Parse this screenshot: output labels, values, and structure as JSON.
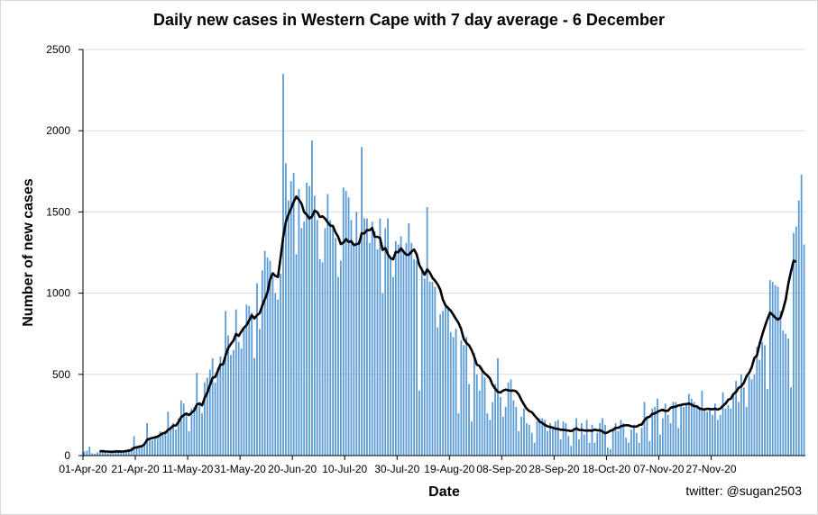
{
  "chart_data": {
    "type": "bar",
    "title": "Daily new cases in Western Cape with 7 day average - 6 December",
    "xlabel": "Date",
    "ylabel": "Number of new cases",
    "credit": "twitter: @sugan2503",
    "ylim": [
      0,
      2500
    ],
    "y_ticks": [
      0,
      500,
      1000,
      1500,
      2000,
      2500
    ],
    "x_tick_labels": [
      "01-Apr-20",
      "21-Apr-20",
      "11-May-20",
      "31-May-20",
      "20-Jun-20",
      "10-Jul-20",
      "30-Jul-20",
      "19-Aug-20",
      "08-Sep-20",
      "28-Sep-20",
      "18-Oct-20",
      "07-Nov-20",
      "27-Nov-20"
    ],
    "x_start": "2020-04-01",
    "x_end": "2020-12-06",
    "grid": "horizontal",
    "colors": {
      "bars": "#5b9bd5",
      "average": "#000000",
      "grid": "#d9d9d9"
    },
    "series": [
      {
        "type": "bar",
        "values": [
          25,
          30,
          55,
          15,
          10,
          20,
          35,
          30,
          20,
          15,
          25,
          30,
          35,
          20,
          25,
          25,
          30,
          40,
          50,
          120,
          60,
          55,
          60,
          80,
          200,
          100,
          95,
          110,
          120,
          150,
          130,
          140,
          270,
          180,
          200,
          160,
          230,
          340,
          320,
          260,
          150,
          290,
          300,
          510,
          320,
          260,
          450,
          480,
          530,
          600,
          450,
          540,
          610,
          560,
          890,
          740,
          620,
          650,
          900,
          700,
          660,
          780,
          930,
          920,
          880,
          600,
          1060,
          780,
          1140,
          1260,
          1220,
          1200,
          1100,
          1000,
          960,
          1120,
          2350,
          1800,
          1570,
          1690,
          1740,
          1240,
          1640,
          1400,
          1440,
          1680,
          1660,
          1940,
          1600,
          1450,
          1210,
          1190,
          1400,
          1610,
          1450,
          1420,
          1340,
          1100,
          1200,
          1650,
          1630,
          1590,
          1450,
          1300,
          1500,
          1320,
          1900,
          1460,
          1460,
          1310,
          1440,
          1380,
          1270,
          1460,
          1000,
          1400,
          1460,
          1210,
          1100,
          1320,
          1300,
          1350,
          1270,
          1310,
          1430,
          1310,
          1210,
          1200,
          400,
          1160,
          1090,
          1530,
          1070,
          1070,
          1040,
          790,
          870,
          890,
          930,
          920,
          760,
          730,
          780,
          260,
          710,
          680,
          730,
          440,
          210,
          630,
          500,
          400,
          540,
          480,
          260,
          220,
          330,
          440,
          600,
          360,
          240,
          300,
          450,
          470,
          340,
          300,
          150,
          240,
          290,
          200,
          190,
          140,
          80,
          210,
          230,
          230,
          220,
          150,
          200,
          180,
          210,
          220,
          100,
          210,
          200,
          120,
          60,
          170,
          230,
          100,
          200,
          130,
          220,
          80,
          190,
          80,
          140,
          200,
          230,
          190,
          50,
          40,
          170,
          200,
          150,
          220,
          200,
          110,
          80,
          160,
          190,
          140,
          80,
          170,
          330,
          230,
          90,
          290,
          300,
          350,
          130,
          230,
          320,
          250,
          200,
          330,
          330,
          170,
          320,
          300,
          310,
          380,
          350,
          330,
          310,
          300,
          400,
          280,
          270,
          290,
          250,
          320,
          220,
          250,
          390,
          290,
          310,
          290,
          370,
          460,
          330,
          500,
          420,
          300,
          490,
          470,
          500,
          670,
          590,
          700,
          680,
          410,
          1080,
          1070,
          1050,
          1040,
          890,
          770,
          750,
          720,
          420,
          1370,
          1410,
          1570,
          1730,
          1300
        ]
      },
      {
        "type": "line",
        "name_hidden": true,
        "values": [
          null,
          null,
          null,
          null,
          null,
          null,
          25,
          28,
          25,
          25,
          23,
          24,
          25,
          26,
          25,
          25,
          28,
          30,
          34,
          48,
          50,
          55,
          58,
          70,
          97,
          104,
          108,
          112,
          117,
          127,
          137,
          141,
          158,
          168,
          185,
          185,
          206,
          236,
          249,
          259,
          249,
          264,
          277,
          314,
          321,
          309,
          355,
          388,
          434,
          478,
          484,
          520,
          561,
          561,
          617,
          663,
          687,
          708,
          749,
          737,
          763,
          787,
          803,
          832,
          864,
          844,
          865,
          876,
          923,
          963,
          1004,
          1085,
          1122,
          1106,
          1099,
          1219,
          1345,
          1438,
          1484,
          1521,
          1562,
          1595,
          1575,
          1551,
          1499,
          1483,
          1460,
          1471,
          1508,
          1499,
          1469,
          1473,
          1459,
          1436,
          1416,
          1413,
          1374,
          1347,
          1302,
          1311,
          1333,
          1315,
          1320,
          1296,
          1301,
          1307,
          1369,
          1367,
          1388,
          1387,
          1401,
          1347,
          1347,
          1339,
          1266,
          1278,
          1239,
          1216,
          1208,
          1254,
          1252,
          1276,
          1254,
          1237,
          1236,
          1255,
          1269,
          1238,
          1173,
          1143,
          1113,
          1146,
          1127,
          1095,
          1077,
          1054,
          1022,
          960,
          925,
          908,
          893,
          868,
          841,
          816,
          778,
          717,
          694,
          679,
          649,
          608,
          560,
          552,
          525,
          506,
          493,
          474,
          435,
          412,
          392,
          388,
          400,
          406,
          402,
          399,
          401,
          395,
          376,
          343,
          314,
          289,
          274,
          267,
          247,
          229,
          208,
          201,
          188,
          180,
          176,
          172,
          166,
          164,
          159,
          159,
          156,
          154,
          151,
          158,
          168,
          157,
          158,
          155,
          154,
          155,
          153,
          160,
          155,
          156,
          148,
          138,
          143,
          153,
          157,
          171,
          171,
          180,
          185,
          187,
          186,
          180,
          178,
          179,
          188,
          191,
          218,
          234,
          239,
          256,
          260,
          269,
          277,
          282,
          275,
          276,
          294,
          299,
          301,
          309,
          311,
          316,
          317,
          320,
          314,
          304,
          304,
          290,
          286,
          284,
          288,
          287,
          285,
          289,
          283,
          290,
          306,
          320,
          343,
          350,
          378,
          392,
          417,
          426,
          448,
          488,
          509,
          544,
          600,
          617,
          686,
          742,
          794,
          840,
          880,
          866,
          850,
          836,
          850,
          900,
          961,
          1059,
          1133,
          1200,
          1193
        ]
      }
    ]
  }
}
